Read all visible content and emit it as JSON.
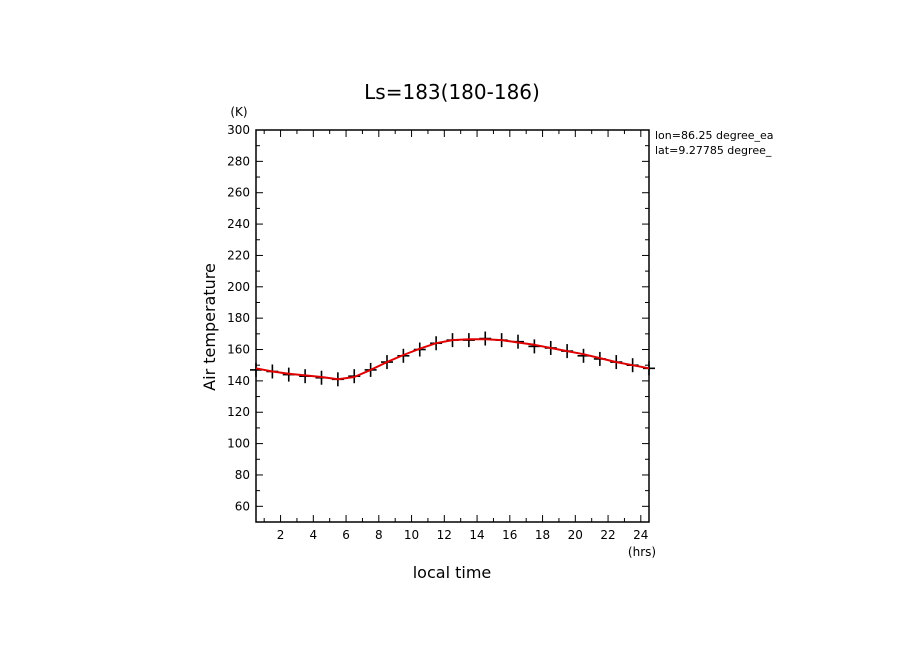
{
  "chart_data": {
    "type": "line",
    "title": "Ls=183(180-186)",
    "xlabel": "local time",
    "ylabel": "Air temperature",
    "x_unit": "(hrs)",
    "y_unit": "(K)",
    "xlim": [
      0.5,
      24.5
    ],
    "ylim": [
      50,
      300
    ],
    "x_ticks": [
      2,
      4,
      6,
      8,
      10,
      12,
      14,
      16,
      18,
      20,
      22,
      24
    ],
    "y_ticks": [
      60,
      80,
      100,
      120,
      140,
      160,
      180,
      200,
      220,
      240,
      260,
      280,
      300
    ],
    "annotations": [
      "lon=86.25 degree_ea",
      "lat=9.27785 degree_"
    ],
    "grid": false,
    "series": [
      {
        "style": "markers",
        "color": "#000000",
        "marker": "plus",
        "x": [
          0.5,
          1.5,
          2.5,
          3.5,
          4.5,
          5.5,
          6.5,
          7.5,
          8.5,
          9.5,
          10.5,
          11.5,
          12.5,
          13.5,
          14.5,
          15.5,
          16.5,
          17.5,
          18.5,
          19.5,
          20.5,
          21.5,
          22.5,
          23.5,
          24.5
        ],
        "y": [
          147,
          146,
          144,
          143,
          142,
          141,
          143,
          147,
          152,
          156,
          160,
          164,
          166,
          166,
          167,
          166,
          165,
          162,
          161,
          159,
          156,
          154,
          152,
          150,
          148
        ]
      },
      {
        "style": "line",
        "color": "#e00000",
        "x": [
          0.5,
          1.5,
          2.5,
          3.5,
          4.5,
          5.5,
          6.5,
          7.5,
          8.5,
          9.5,
          10.5,
          11.5,
          12.5,
          13.5,
          14.5,
          15.5,
          16.5,
          17.5,
          18.5,
          19.5,
          20.5,
          21.5,
          22.5,
          23.5,
          24.5
        ],
        "y": [
          148,
          146,
          144.5,
          143.5,
          142.5,
          141,
          142.5,
          147,
          152,
          156.5,
          160.5,
          164,
          166,
          166.5,
          166.5,
          166,
          164.5,
          163,
          161,
          159,
          157,
          154.5,
          152,
          150,
          148
        ]
      }
    ]
  }
}
